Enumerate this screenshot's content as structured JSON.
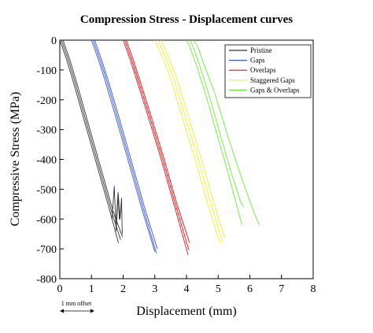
{
  "chart_data": {
    "type": "line",
    "title": "Compression Stress - Displacement curves",
    "xlabel": "Displacement (mm)",
    "ylabel": "Compressive Stress (MPa)",
    "xlim": [
      0,
      8
    ],
    "ylim": [
      -800,
      0
    ],
    "xticks": [
      0,
      1,
      2,
      3,
      4,
      5,
      6,
      7,
      8
    ],
    "yticks": [
      0,
      -100,
      -200,
      -300,
      -400,
      -500,
      -600,
      -700,
      -800
    ],
    "grid": false,
    "legend_position": "top-right",
    "annotation": "1 mm offset",
    "series": [
      {
        "name": "Pristine",
        "color": "#333333",
        "curves": [
          {
            "x": [
              0,
              0.1,
              0.2,
              0.4,
              0.8,
              1.2,
              1.6,
              1.85
            ],
            "y": [
              0,
              -30,
              -60,
              -130,
              -280,
              -430,
              -580,
              -680
            ]
          },
          {
            "x": [
              0.05,
              0.15,
              0.25,
              0.45,
              0.85,
              1.25,
              1.65,
              1.92
            ],
            "y": [
              0,
              -30,
              -60,
              -130,
              -280,
              -430,
              -580,
              -670
            ]
          },
          {
            "x": [
              0.1,
              0.2,
              0.3,
              0.5,
              0.9,
              1.3,
              1.7,
              1.98
            ],
            "y": [
              0,
              -30,
              -60,
              -130,
              -280,
              -430,
              -580,
              -660
            ]
          },
          {
            "x": [
              1.65,
              1.72,
              1.78,
              1.84,
              1.88,
              1.93
            ],
            "y": [
              -600,
              -490,
              -640,
              -520,
              -600,
              -560
            ]
          },
          {
            "x": [
              1.78,
              1.84,
              1.9,
              1.95,
              1.97
            ],
            "y": [
              -610,
              -510,
              -600,
              -530,
              -650
            ]
          }
        ]
      },
      {
        "name": "Gaps",
        "color": "#3355ee",
        "curves": [
          {
            "x": [
              1.0,
              1.1,
              1.2,
              1.4,
              1.8,
              2.2,
              2.6,
              3.0
            ],
            "y": [
              0,
              -30,
              -60,
              -125,
              -270,
              -420,
              -570,
              -710
            ]
          },
          {
            "x": [
              1.05,
              1.15,
              1.25,
              1.45,
              1.85,
              2.25,
              2.65,
              3.05
            ],
            "y": [
              0,
              -30,
              -60,
              -125,
              -270,
              -420,
              -570,
              -715
            ]
          },
          {
            "x": [
              1.1,
              1.2,
              1.3,
              1.5,
              1.9,
              2.3,
              2.7,
              3.08
            ],
            "y": [
              0,
              -30,
              -60,
              -125,
              -270,
              -420,
              -570,
              -700
            ]
          }
        ]
      },
      {
        "name": "Overlaps",
        "color": "#ee1111",
        "curves": [
          {
            "x": [
              2.0,
              2.1,
              2.2,
              2.4,
              2.8,
              3.2,
              3.6,
              4.05
            ],
            "y": [
              0,
              -30,
              -60,
              -125,
              -260,
              -400,
              -550,
              -720
            ]
          },
          {
            "x": [
              2.05,
              2.15,
              2.25,
              2.45,
              2.85,
              3.25,
              3.65,
              4.08
            ],
            "y": [
              0,
              -30,
              -60,
              -125,
              -260,
              -400,
              -550,
              -705
            ]
          },
          {
            "x": [
              2.1,
              2.2,
              2.3,
              2.5,
              2.9,
              3.3,
              3.7,
              4.1
            ],
            "y": [
              0,
              -30,
              -60,
              -125,
              -260,
              -400,
              -550,
              -680
            ]
          }
        ]
      },
      {
        "name": "Staggered Gaps",
        "color": "#f0f020",
        "curves": [
          {
            "x": [
              3.0,
              3.1,
              3.25,
              3.5,
              3.9,
              4.3,
              4.7,
              5.05
            ],
            "y": [
              0,
              -25,
              -60,
              -130,
              -270,
              -410,
              -560,
              -680
            ]
          },
          {
            "x": [
              3.1,
              3.2,
              3.35,
              3.6,
              4.0,
              4.4,
              4.8,
              5.15
            ],
            "y": [
              0,
              -25,
              -60,
              -130,
              -270,
              -410,
              -560,
              -680
            ]
          },
          {
            "x": [
              3.2,
              3.3,
              3.45,
              3.7,
              4.1,
              4.5,
              4.9,
              5.2
            ],
            "y": [
              0,
              -25,
              -60,
              -130,
              -270,
              -410,
              -560,
              -660
            ]
          }
        ]
      },
      {
        "name": "Gaps & Overlaps",
        "color": "#66ee33",
        "curves": [
          {
            "x": [
              4.0,
              4.1,
              4.3,
              4.6,
              5.0,
              5.3,
              5.6,
              5.75
            ],
            "y": [
              0,
              -20,
              -80,
              -180,
              -330,
              -440,
              -560,
              -620
            ]
          },
          {
            "x": [
              4.1,
              4.2,
              4.4,
              4.7,
              5.1,
              5.4,
              5.7,
              5.8
            ],
            "y": [
              0,
              -20,
              -80,
              -180,
              -330,
              -440,
              -540,
              -560
            ]
          },
          {
            "x": [
              4.2,
              4.35,
              4.55,
              4.9,
              5.3,
              5.7,
              6.1,
              6.3
            ],
            "y": [
              0,
              -20,
              -80,
              -180,
              -320,
              -450,
              -570,
              -620
            ]
          }
        ]
      }
    ]
  }
}
